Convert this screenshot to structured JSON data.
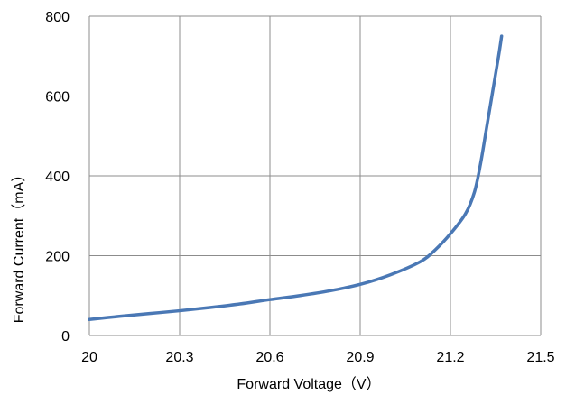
{
  "chart_data": {
    "type": "line",
    "title": "",
    "xlabel": "Forward Voltage（V）",
    "ylabel": "Forward Current（mA）",
    "xlim": [
      20,
      21.5
    ],
    "ylim": [
      0,
      800
    ],
    "x_ticks": [
      20,
      20.3,
      20.6,
      20.9,
      21.2,
      21.5
    ],
    "x_tick_labels": [
      "20",
      "20.3",
      "20.6",
      "20.9",
      "21.2",
      "21.5"
    ],
    "y_ticks": [
      0,
      200,
      400,
      600,
      800
    ],
    "y_tick_labels": [
      "0",
      "200",
      "400",
      "600",
      "800"
    ],
    "grid": true,
    "legend": "none",
    "series": [
      {
        "color": "#4a78b5",
        "x": [
          20.0,
          20.1,
          20.2,
          20.3,
          20.4,
          20.5,
          20.6,
          20.7,
          20.8,
          20.9,
          21.0,
          21.1,
          21.15,
          21.2,
          21.25,
          21.28,
          21.3,
          21.32,
          21.34,
          21.36,
          21.37
        ],
        "y": [
          40,
          48,
          55,
          62,
          70,
          79,
          90,
          100,
          112,
          128,
          152,
          185,
          215,
          255,
          305,
          360,
          430,
          520,
          610,
          700,
          750
        ]
      }
    ]
  }
}
